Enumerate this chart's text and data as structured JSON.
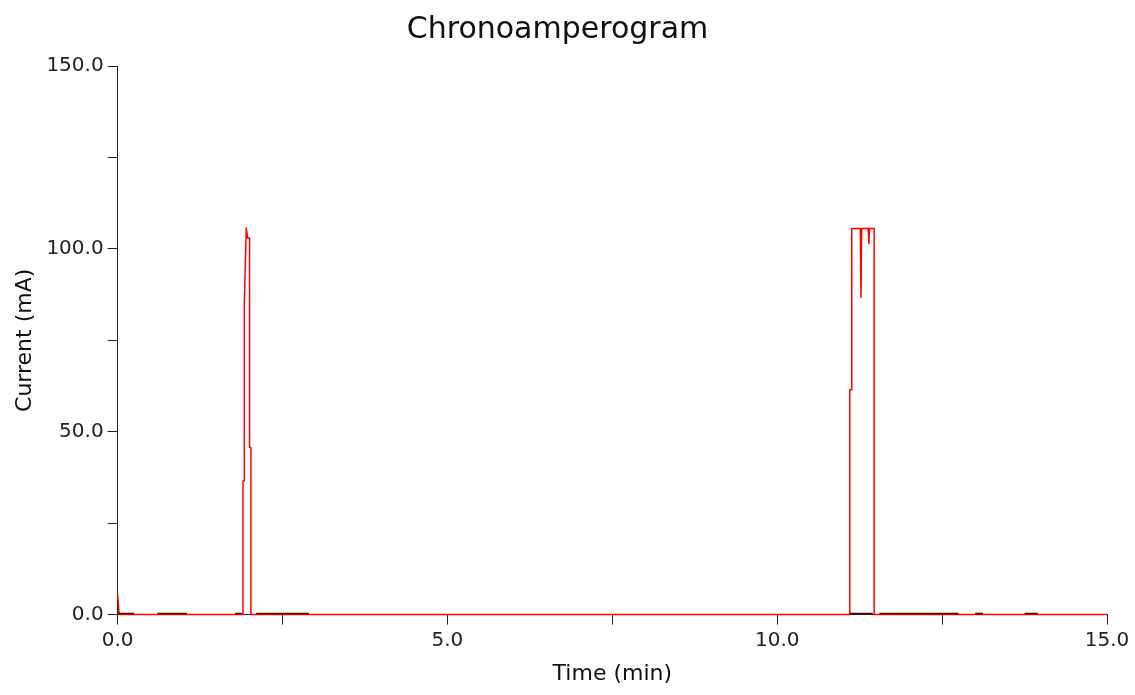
{
  "chart_data": {
    "type": "line",
    "title": "Chronoamperogram",
    "xlabel": "Time (min)",
    "ylabel": "Current (mA)",
    "xlim": [
      0,
      15
    ],
    "ylim": [
      0,
      150
    ],
    "xticks": [
      {
        "value": 0,
        "label": "0.0"
      },
      {
        "value": 2.5,
        "label": null
      },
      {
        "value": 5,
        "label": "5.0"
      },
      {
        "value": 7.5,
        "label": null
      },
      {
        "value": 10,
        "label": "10.0"
      },
      {
        "value": 12.5,
        "label": null
      },
      {
        "value": 15,
        "label": "15.0"
      }
    ],
    "yticks": [
      {
        "value": 0,
        "label": "0.0"
      },
      {
        "value": 25,
        "label": null
      },
      {
        "value": 50,
        "label": "50.0"
      },
      {
        "value": 75,
        "label": null
      },
      {
        "value": 100,
        "label": "100.0"
      },
      {
        "value": 125,
        "label": null
      },
      {
        "value": 150,
        "label": "150.0"
      }
    ],
    "grid": false,
    "legend": false,
    "marker": "none",
    "line_style": "solid",
    "series": [
      {
        "color": "#5a0000",
        "x": [
          0,
          0.25,
          0.26,
          0.6,
          1.05,
          1.06,
          1.78,
          1.88,
          1.91,
          2.1,
          2.9,
          2.91,
          11.1,
          11.45,
          11.46,
          11.55,
          12.75,
          12.76,
          13.0,
          13.12,
          13.13,
          13.75,
          13.95
        ],
        "values": [
          0.3,
          0.3,
          null,
          0.3,
          0.3,
          null,
          0.3,
          0.3,
          null,
          0.3,
          0.3,
          null,
          0.3,
          0.3,
          null,
          0.3,
          0.3,
          null,
          0.3,
          0.3,
          null,
          0.3,
          0.3
        ]
      },
      {
        "color": "#ff0000",
        "x": [
          0,
          0.02,
          0.03,
          1.9,
          1.9,
          1.92,
          1.92,
          1.95,
          1.97,
          2.0,
          2.0,
          2.02,
          2.02,
          2.1,
          11.1,
          11.1,
          11.13,
          11.13,
          11.26,
          11.27,
          11.28,
          11.38,
          11.39,
          11.4,
          11.47,
          11.47,
          15
        ],
        "values": [
          5.5,
          0.5,
          0,
          0,
          36.5,
          36.5,
          84.7,
          105.7,
          103,
          103,
          45.7,
          45.7,
          0,
          0,
          0,
          61.5,
          61.5,
          105.6,
          105.6,
          86.7,
          105.6,
          105.6,
          101.5,
          105.6,
          105.6,
          0,
          0
        ]
      }
    ]
  }
}
